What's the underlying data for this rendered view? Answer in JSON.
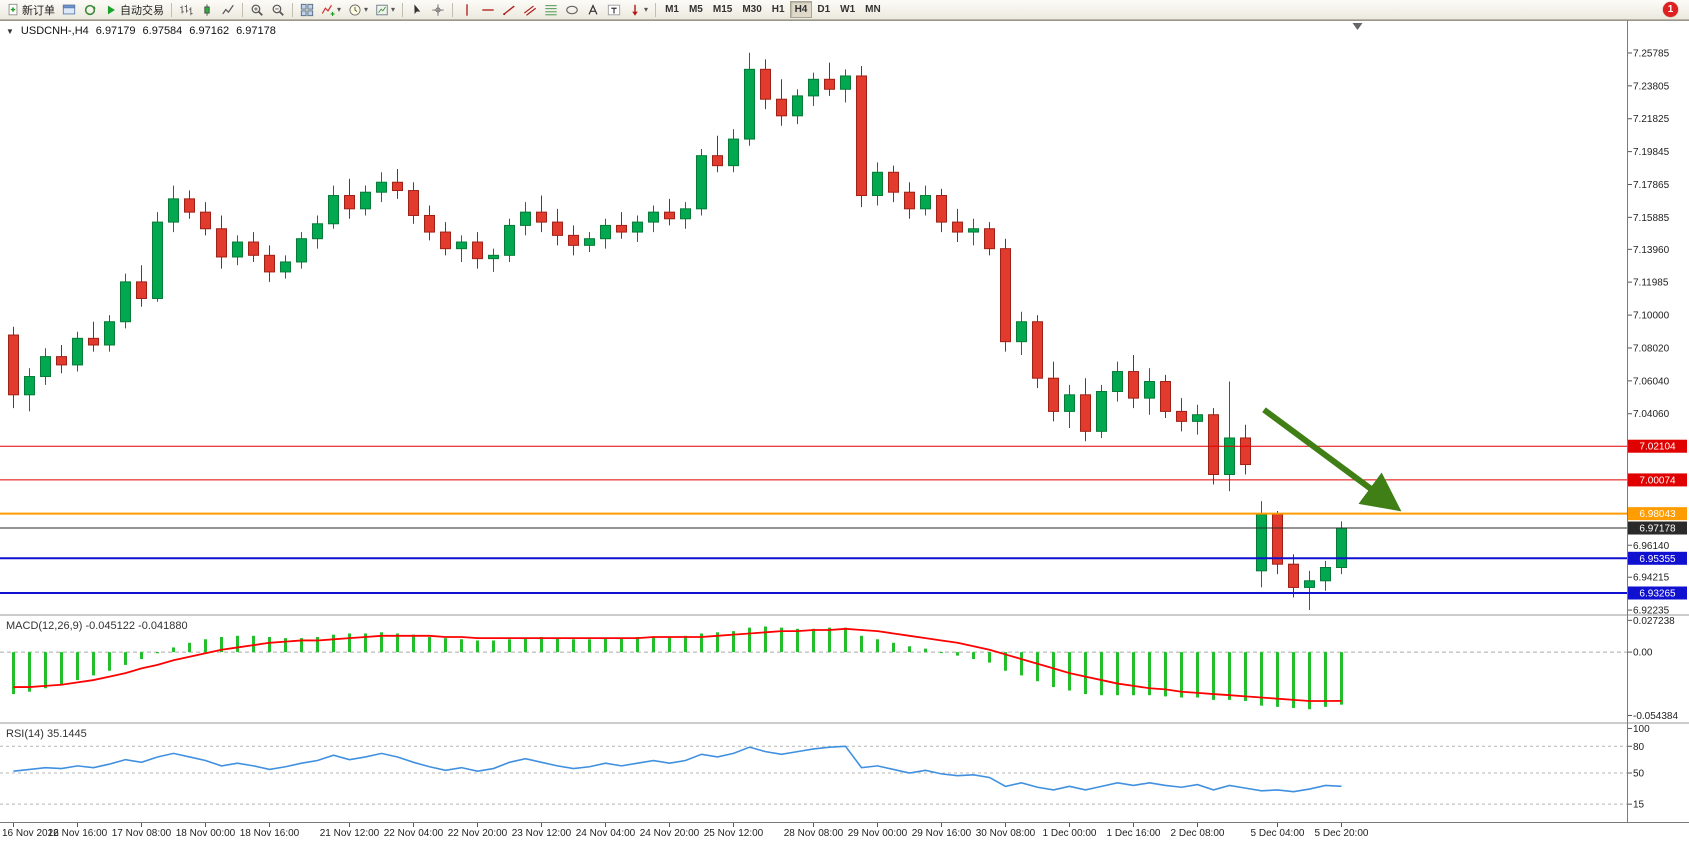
{
  "toolbar": {
    "dropdown_glyph": "▾",
    "notification_count": "1",
    "buttons": [
      {
        "name": "new-order-button",
        "icon": "plusdoc",
        "icon_name": "new-order-icon",
        "label": "新订单"
      },
      {
        "name": "chart-window-button",
        "icon": "window",
        "icon_name": "chart-window-icon"
      },
      {
        "name": "refresh-button",
        "icon": "refresh",
        "icon_name": "refresh-icon"
      },
      {
        "name": "auto-trading-button",
        "icon": "play",
        "icon_name": "auto-trading-icon",
        "label": "自动交易"
      },
      {
        "sep": true
      },
      {
        "name": "bar-chart-button",
        "icon": "bars",
        "icon_name": "bar-chart-icon"
      },
      {
        "name": "candlestick-chart-button",
        "icon": "candle",
        "icon_name": "candlestick-icon"
      },
      {
        "name": "line-chart-button",
        "icon": "linechart",
        "icon_name": "line-chart-icon"
      },
      {
        "sep": true
      },
      {
        "name": "zoom-in-button",
        "icon": "zoomin",
        "icon_name": "zoom-in-icon"
      },
      {
        "name": "zoom-out-button",
        "icon": "zoomout",
        "icon_name": "zoom-out-icon"
      },
      {
        "sep": true
      },
      {
        "name": "tile-windows-button",
        "icon": "tile",
        "icon_name": "tile-windows-icon"
      },
      {
        "name": "indicators-button",
        "icon": "indicator",
        "icon_name": "indicators-icon",
        "dropdown": true
      },
      {
        "name": "periods-button",
        "icon": "clock",
        "icon_name": "periods-icon",
        "dropdown": true
      },
      {
        "name": "templates-button",
        "icon": "template",
        "icon_name": "templates-icon",
        "dropdown": true
      },
      {
        "sep": true
      },
      {
        "name": "cursor-button",
        "icon": "cursor",
        "icon_name": "cursor-icon"
      },
      {
        "name": "crosshair-button",
        "icon": "crosshair",
        "icon_name": "crosshair-icon"
      },
      {
        "sep": true
      },
      {
        "name": "vertical-line-button",
        "icon": "vline",
        "icon_name": "vertical-line-icon"
      },
      {
        "name": "horizontal-line-button",
        "icon": "hline",
        "icon_name": "horizontal-line-icon"
      },
      {
        "name": "trendline-button",
        "icon": "trend",
        "icon_name": "trendline-icon"
      },
      {
        "name": "channel-button",
        "icon": "channel",
        "icon_name": "channel-icon"
      },
      {
        "name": "fibonacci-button",
        "icon": "fibo",
        "icon_name": "fibonacci-icon"
      },
      {
        "name": "shapes-button",
        "icon": "ellipse",
        "icon_name": "shapes-icon"
      },
      {
        "name": "text-button",
        "icon": "textA",
        "icon_name": "text-icon"
      },
      {
        "name": "label-button",
        "icon": "labelT",
        "icon_name": "label-icon"
      },
      {
        "name": "arrows-button",
        "icon": "arrowdown",
        "icon_name": "arrows-icon",
        "dropdown": true
      },
      {
        "sep": true
      }
    ],
    "timeframes": [
      "M1",
      "M5",
      "M15",
      "M30",
      "H1",
      "H4",
      "D1",
      "W1",
      "MN"
    ],
    "active_timeframe": "H4"
  },
  "chart": {
    "one_click_toggle": "▼",
    "symbol_period": "USDCNH-,H4",
    "open": "6.97179",
    "high": "6.97584",
    "low": "6.97162",
    "close": "6.97178"
  },
  "price_axis": {
    "ticks": [
      "7.25785",
      "7.23805",
      "7.21825",
      "7.19845",
      "7.17865",
      "7.15885",
      "7.13960",
      "7.11985",
      "7.10000",
      "7.08020",
      "7.06040",
      "7.04060",
      "6.96140",
      "6.94215",
      "6.92235"
    ]
  },
  "levels": [
    {
      "price": 7.02104,
      "label": "7.02104",
      "color": "#E00000",
      "width": 1,
      "dash": "none"
    },
    {
      "price": 7.00074,
      "label": "7.00074",
      "color": "#E00000",
      "width": 1,
      "dash": "none"
    },
    {
      "price": 6.98043,
      "label": "6.98043",
      "color": "#FF9C00",
      "width": 2,
      "dash": "none"
    },
    {
      "price": 6.97178,
      "label": "6.97178",
      "color": "#2a2a2a",
      "width": 1,
      "dash": "none",
      "current": true
    },
    {
      "price": 6.95355,
      "label": "6.95355",
      "color": "#1010D0",
      "width": 2,
      "dash": "none"
    },
    {
      "price": 6.93265,
      "label": "6.93265",
      "color": "#1010D0",
      "width": 2,
      "dash": "none"
    }
  ],
  "indicators": {
    "macd": {
      "label": "MACD(12,26,9)",
      "value_main": "-0.045122",
      "value_signal": "-0.041880",
      "ticks": [
        "0.027238",
        "0.00",
        "-0.054384"
      ]
    },
    "rsi": {
      "label": "RSI(14)",
      "value": "35.1445",
      "ticks": [
        "100",
        "80",
        "50",
        "15"
      ],
      "levels": [
        80,
        50,
        15
      ]
    }
  },
  "time_axis": {
    "labels": [
      {
        "text": "16 Nov 2022",
        "bar": 0
      },
      {
        "text": "16 Nov 16:00",
        "bar": 4
      },
      {
        "text": "17 Nov 08:00",
        "bar": 8
      },
      {
        "text": "18 Nov 00:00",
        "bar": 12
      },
      {
        "text": "18 Nov 16:00",
        "bar": 16
      },
      {
        "text": "21 Nov 12:00",
        "bar": 21
      },
      {
        "text": "22 Nov 04:00",
        "bar": 25
      },
      {
        "text": "22 Nov 20:00",
        "bar": 29
      },
      {
        "text": "23 Nov 12:00",
        "bar": 33
      },
      {
        "text": "24 Nov 04:00",
        "bar": 37
      },
      {
        "text": "24 Nov 20:00",
        "bar": 41
      },
      {
        "text": "25 Nov 12:00",
        "bar": 45
      },
      {
        "text": "28 Nov 08:00",
        "bar": 50
      },
      {
        "text": "29 Nov 00:00",
        "bar": 54
      },
      {
        "text": "29 Nov 16:00",
        "bar": 58
      },
      {
        "text": "30 Nov 08:00",
        "bar": 62
      },
      {
        "text": "1 Dec 00:00",
        "bar": 66
      },
      {
        "text": "1 Dec 16:00",
        "bar": 70
      },
      {
        "text": "2 Dec 08:00",
        "bar": 74
      },
      {
        "text": "5 Dec 04:00",
        "bar": 79
      },
      {
        "text": "5 Dec 20:00",
        "bar": 83
      }
    ]
  },
  "annotations": {
    "arrow": {
      "from_bar": 78.5,
      "from_price": 7.043,
      "to_bar": 86.5,
      "to_price": 6.986,
      "color": "#3F7F16"
    },
    "shift_marker_bar": 84.0
  },
  "colors": {
    "up": "#00A94F",
    "up_border": "#067A36",
    "down": "#E23B2E",
    "down_border": "#A02015",
    "macd_hist": "#22BE2C",
    "macd_signal": "#FF0000",
    "rsi_line": "#4090E0",
    "axis_text": "#222222"
  },
  "chart_data": {
    "type": "candlestick",
    "symbol": "USDCNH-",
    "timeframe": "H4",
    "price_range": [
      6.92,
      7.2765
    ],
    "bars_ohlc": [
      [
        7.088,
        7.093,
        7.044,
        7.052
      ],
      [
        7.052,
        7.068,
        7.042,
        7.063
      ],
      [
        7.063,
        7.08,
        7.058,
        7.075
      ],
      [
        7.075,
        7.082,
        7.065,
        7.07
      ],
      [
        7.07,
        7.09,
        7.066,
        7.086
      ],
      [
        7.086,
        7.096,
        7.078,
        7.082
      ],
      [
        7.082,
        7.1,
        7.078,
        7.096
      ],
      [
        7.096,
        7.125,
        7.092,
        7.12
      ],
      [
        7.12,
        7.13,
        7.105,
        7.11
      ],
      [
        7.11,
        7.162,
        7.108,
        7.156
      ],
      [
        7.156,
        7.178,
        7.15,
        7.17
      ],
      [
        7.17,
        7.175,
        7.158,
        7.162
      ],
      [
        7.162,
        7.168,
        7.148,
        7.152
      ],
      [
        7.152,
        7.16,
        7.128,
        7.135
      ],
      [
        7.135,
        7.148,
        7.13,
        7.144
      ],
      [
        7.144,
        7.15,
        7.132,
        7.136
      ],
      [
        7.136,
        7.142,
        7.12,
        7.126
      ],
      [
        7.126,
        7.136,
        7.122,
        7.132
      ],
      [
        7.132,
        7.15,
        7.128,
        7.146
      ],
      [
        7.146,
        7.16,
        7.14,
        7.155
      ],
      [
        7.155,
        7.178,
        7.152,
        7.172
      ],
      [
        7.172,
        7.182,
        7.158,
        7.164
      ],
      [
        7.164,
        7.178,
        7.16,
        7.174
      ],
      [
        7.174,
        7.186,
        7.168,
        7.18
      ],
      [
        7.18,
        7.188,
        7.17,
        7.175
      ],
      [
        7.175,
        7.18,
        7.155,
        7.16
      ],
      [
        7.16,
        7.166,
        7.145,
        7.15
      ],
      [
        7.15,
        7.156,
        7.136,
        7.14
      ],
      [
        7.14,
        7.148,
        7.132,
        7.144
      ],
      [
        7.144,
        7.15,
        7.128,
        7.134
      ],
      [
        7.134,
        7.14,
        7.126,
        7.136
      ],
      [
        7.136,
        7.158,
        7.132,
        7.154
      ],
      [
        7.154,
        7.168,
        7.148,
        7.162
      ],
      [
        7.162,
        7.172,
        7.15,
        7.156
      ],
      [
        7.156,
        7.164,
        7.142,
        7.148
      ],
      [
        7.148,
        7.154,
        7.136,
        7.142
      ],
      [
        7.142,
        7.15,
        7.138,
        7.146
      ],
      [
        7.146,
        7.158,
        7.14,
        7.154
      ],
      [
        7.154,
        7.162,
        7.146,
        7.15
      ],
      [
        7.15,
        7.16,
        7.144,
        7.156
      ],
      [
        7.156,
        7.166,
        7.15,
        7.162
      ],
      [
        7.162,
        7.17,
        7.154,
        7.158
      ],
      [
        7.158,
        7.168,
        7.152,
        7.164
      ],
      [
        7.164,
        7.2,
        7.16,
        7.196
      ],
      [
        7.196,
        7.208,
        7.186,
        7.19
      ],
      [
        7.19,
        7.212,
        7.186,
        7.206
      ],
      [
        7.206,
        7.258,
        7.202,
        7.248
      ],
      [
        7.248,
        7.254,
        7.224,
        7.23
      ],
      [
        7.23,
        7.242,
        7.214,
        7.22
      ],
      [
        7.22,
        7.236,
        7.215,
        7.232
      ],
      [
        7.232,
        7.246,
        7.226,
        7.242
      ],
      [
        7.242,
        7.252,
        7.232,
        7.236
      ],
      [
        7.236,
        7.248,
        7.228,
        7.244
      ],
      [
        7.244,
        7.25,
        7.165,
        7.172
      ],
      [
        7.172,
        7.192,
        7.166,
        7.186
      ],
      [
        7.186,
        7.19,
        7.168,
        7.174
      ],
      [
        7.174,
        7.18,
        7.158,
        7.164
      ],
      [
        7.164,
        7.178,
        7.16,
        7.172
      ],
      [
        7.172,
        7.176,
        7.15,
        7.156
      ],
      [
        7.156,
        7.164,
        7.144,
        7.15
      ],
      [
        7.15,
        7.158,
        7.142,
        7.152
      ],
      [
        7.152,
        7.156,
        7.136,
        7.14
      ],
      [
        7.14,
        7.146,
        7.078,
        7.084
      ],
      [
        7.084,
        7.102,
        7.076,
        7.096
      ],
      [
        7.096,
        7.1,
        7.056,
        7.062
      ],
      [
        7.062,
        7.072,
        7.036,
        7.042
      ],
      [
        7.042,
        7.058,
        7.032,
        7.052
      ],
      [
        7.052,
        7.062,
        7.024,
        7.03
      ],
      [
        7.03,
        7.058,
        7.026,
        7.054
      ],
      [
        7.054,
        7.072,
        7.048,
        7.066
      ],
      [
        7.066,
        7.076,
        7.044,
        7.05
      ],
      [
        7.05,
        7.068,
        7.04,
        7.06
      ],
      [
        7.06,
        7.064,
        7.038,
        7.042
      ],
      [
        7.042,
        7.05,
        7.03,
        7.036
      ],
      [
        7.036,
        7.046,
        7.028,
        7.04
      ],
      [
        7.04,
        7.044,
        6.998,
        7.004
      ],
      [
        7.004,
        7.06,
        6.994,
        7.026
      ],
      [
        7.026,
        7.034,
        7.004,
        7.01
      ],
      [
        6.946,
        6.988,
        6.936,
        6.98
      ],
      [
        6.98,
        6.982,
        6.944,
        6.95
      ],
      [
        6.95,
        6.956,
        6.93,
        6.936
      ],
      [
        6.936,
        6.946,
        6.9224,
        6.94
      ],
      [
        6.94,
        6.952,
        6.934,
        6.948
      ],
      [
        6.948,
        6.9758,
        6.944,
        6.9718
      ]
    ],
    "macd_histogram": [
      -0.036,
      -0.034,
      -0.031,
      -0.028,
      -0.024,
      -0.02,
      -0.016,
      -0.011,
      -0.006,
      -0.001,
      0.004,
      0.008,
      0.011,
      0.013,
      0.014,
      0.014,
      0.013,
      0.012,
      0.012,
      0.013,
      0.015,
      0.016,
      0.016,
      0.017,
      0.016,
      0.015,
      0.013,
      0.012,
      0.011,
      0.01,
      0.01,
      0.011,
      0.012,
      0.013,
      0.012,
      0.011,
      0.011,
      0.012,
      0.012,
      0.013,
      0.013,
      0.013,
      0.014,
      0.016,
      0.017,
      0.018,
      0.021,
      0.022,
      0.021,
      0.02,
      0.02,
      0.021,
      0.021,
      0.014,
      0.011,
      0.008,
      0.005,
      0.003,
      0.0,
      -0.003,
      -0.006,
      -0.009,
      -0.016,
      -0.02,
      -0.025,
      -0.03,
      -0.033,
      -0.036,
      -0.037,
      -0.037,
      -0.037,
      -0.037,
      -0.038,
      -0.039,
      -0.039,
      -0.041,
      -0.041,
      -0.042,
      -0.046,
      -0.047,
      -0.048,
      -0.049,
      -0.047,
      -0.045122
    ],
    "macd_signal": [
      -0.03,
      -0.03,
      -0.029,
      -0.028,
      -0.026,
      -0.024,
      -0.021,
      -0.018,
      -0.014,
      -0.011,
      -0.007,
      -0.004,
      -0.001,
      0.002,
      0.004,
      0.006,
      0.008,
      0.009,
      0.01,
      0.01,
      0.011,
      0.012,
      0.013,
      0.014,
      0.014,
      0.014,
      0.014,
      0.013,
      0.013,
      0.012,
      0.012,
      0.012,
      0.012,
      0.012,
      0.012,
      0.012,
      0.012,
      0.012,
      0.012,
      0.012,
      0.013,
      0.013,
      0.013,
      0.013,
      0.014,
      0.015,
      0.016,
      0.017,
      0.018,
      0.018,
      0.019,
      0.019,
      0.02,
      0.019,
      0.018,
      0.016,
      0.014,
      0.012,
      0.01,
      0.008,
      0.005,
      0.002,
      -0.002,
      -0.006,
      -0.01,
      -0.014,
      -0.018,
      -0.021,
      -0.024,
      -0.027,
      -0.029,
      -0.031,
      -0.032,
      -0.034,
      -0.035,
      -0.036,
      -0.037,
      -0.038,
      -0.039,
      -0.04,
      -0.041,
      -0.042,
      -0.042,
      -0.04188
    ],
    "rsi": [
      52,
      54,
      56,
      55,
      58,
      56,
      60,
      65,
      62,
      68,
      72,
      68,
      64,
      58,
      61,
      58,
      54,
      57,
      61,
      64,
      70,
      65,
      68,
      72,
      68,
      62,
      57,
      53,
      56,
      52,
      55,
      62,
      66,
      62,
      58,
      55,
      57,
      61,
      58,
      61,
      64,
      61,
      64,
      71,
      68,
      72,
      79,
      74,
      71,
      74,
      77,
      79,
      80,
      56,
      58,
      54,
      50,
      53,
      49,
      47,
      48,
      45,
      35,
      39,
      34,
      31,
      35,
      31,
      35,
      39,
      36,
      39,
      36,
      34,
      37,
      31,
      36,
      33,
      30,
      31,
      29,
      32,
      36,
      35.1
    ]
  }
}
